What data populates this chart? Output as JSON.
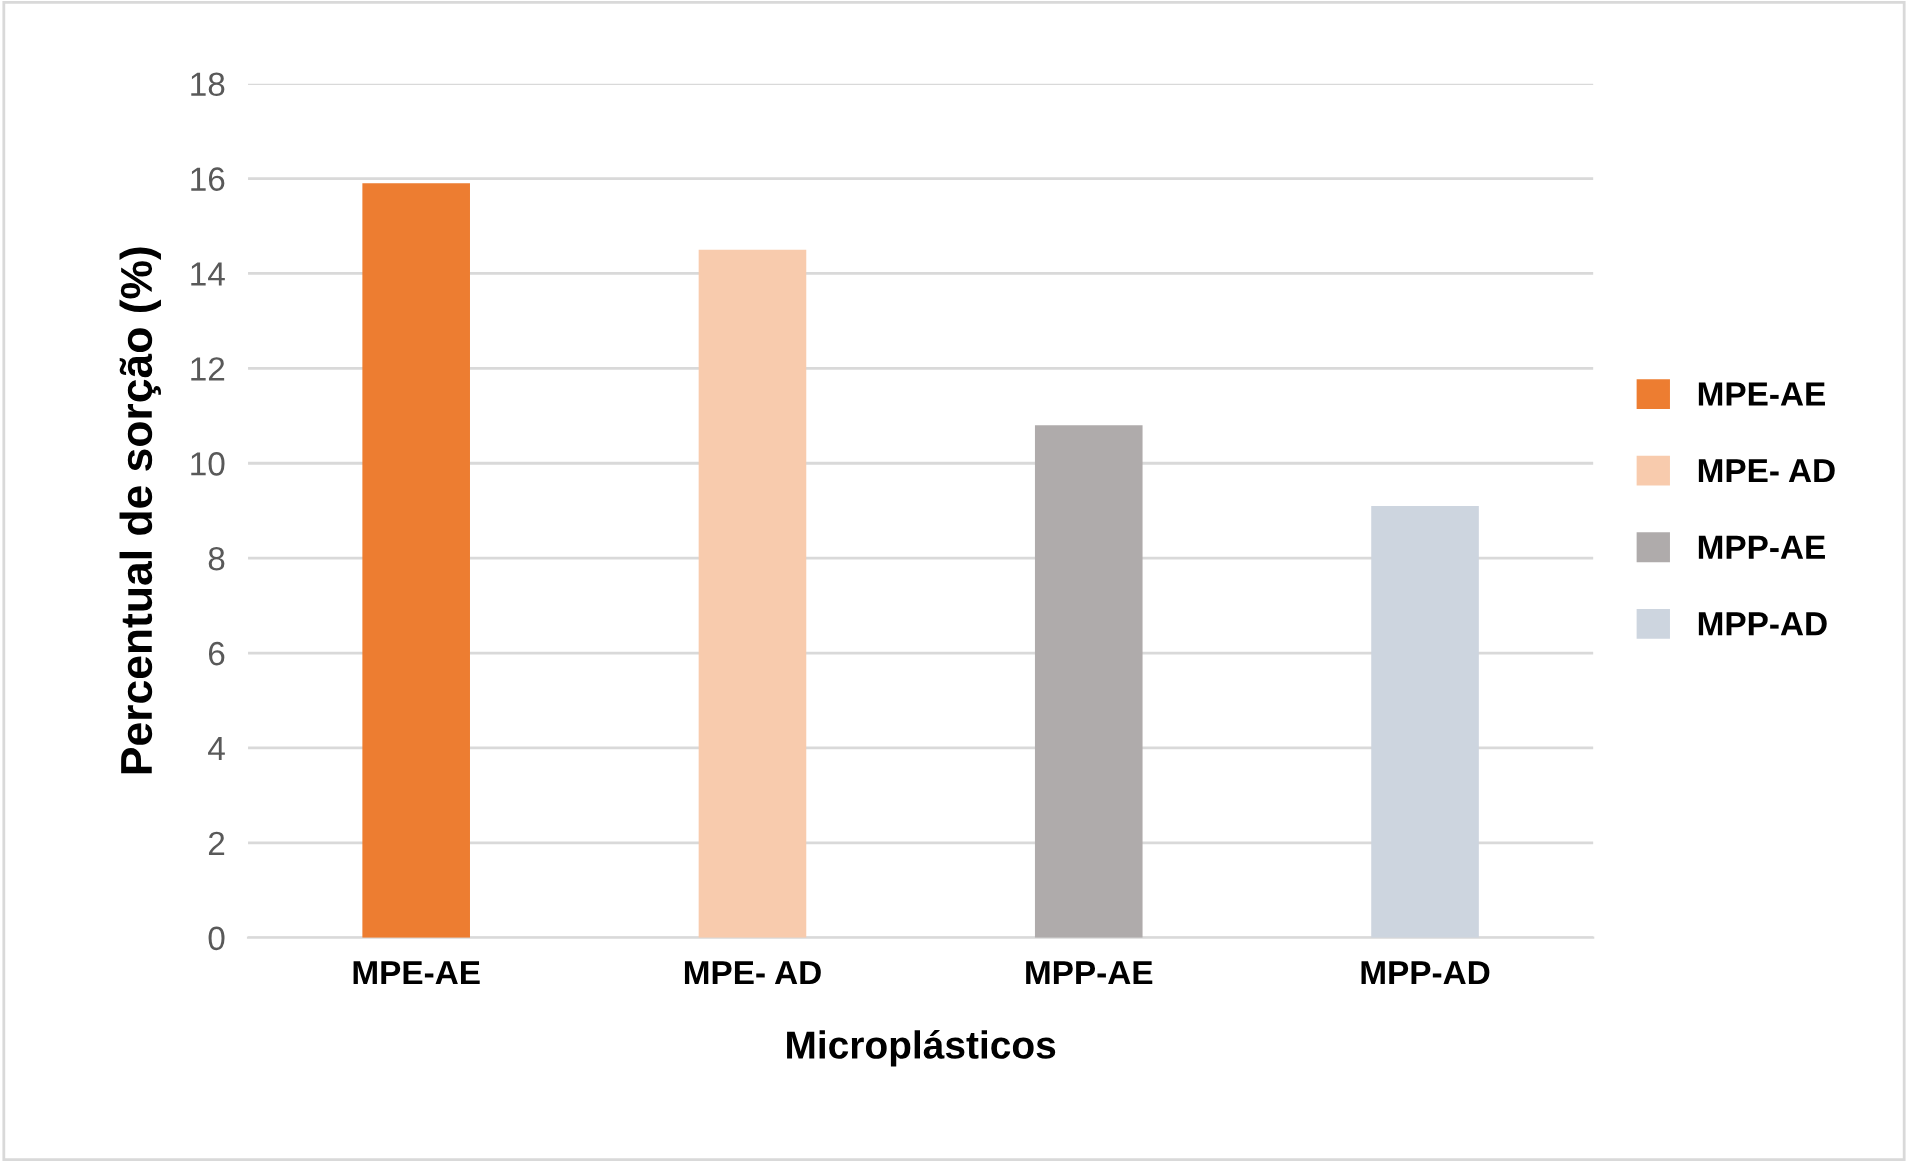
{
  "chart_data": {
    "type": "bar",
    "xlabel": "Microplásticos",
    "ylabel": "Percentual de sorção (%)",
    "categories": [
      "MPE-AE",
      "MPE- AD",
      "MPP-AE",
      "MPP-AD"
    ],
    "series": [
      {
        "name": "MPE-AE",
        "color": "#ed7d31",
        "values": [
          15.9,
          null,
          null,
          null
        ]
      },
      {
        "name": "MPE- AD",
        "color": "#f8cbad",
        "values": [
          null,
          14.5,
          null,
          null
        ]
      },
      {
        "name": "MPP-AE",
        "color": "#afabab",
        "values": [
          null,
          null,
          10.8,
          null
        ]
      },
      {
        "name": "MPP-AD",
        "color": "#cdd5df",
        "values": [
          null,
          null,
          null,
          9.1
        ]
      }
    ],
    "stacked": true,
    "ylim": [
      0,
      18
    ],
    "yticks": [
      0,
      2,
      4,
      6,
      8,
      10,
      12,
      14,
      16,
      18
    ],
    "grid": "y",
    "legend": "right"
  }
}
